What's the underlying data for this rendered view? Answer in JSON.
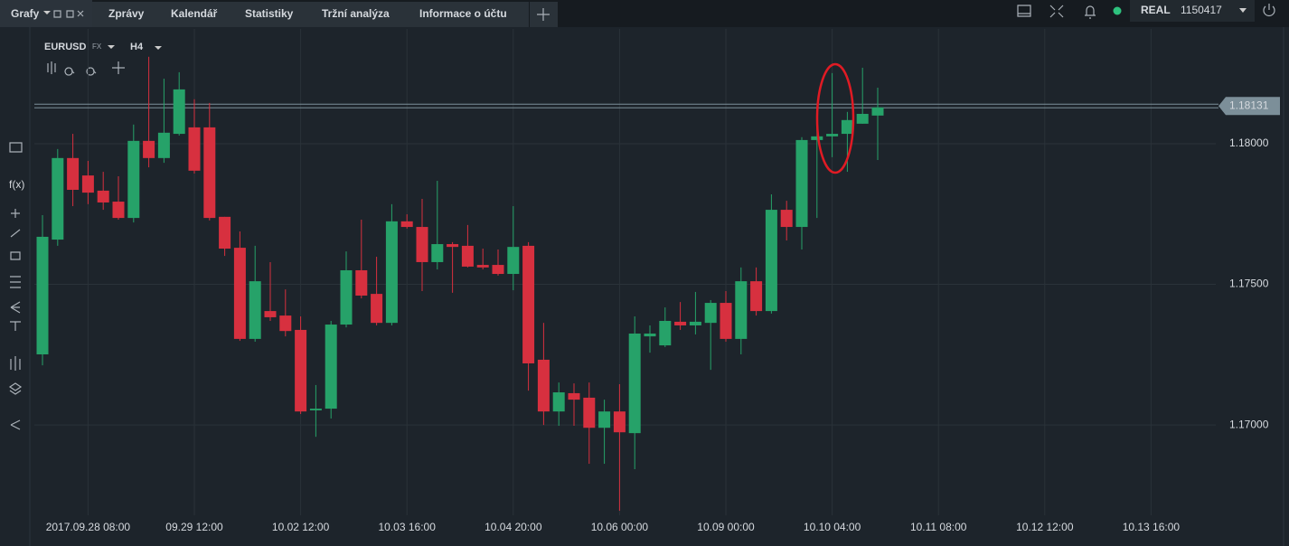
{
  "header": {
    "tabs": [
      "Grafy",
      "Zprávy",
      "Kalendář",
      "Statistiky",
      "Tržní analýza",
      "Informace o účtu"
    ],
    "account_type": "REAL",
    "account_id": "1150417"
  },
  "toolbar": [
    "f(x)"
  ],
  "chart_data": {
    "type": "candlestick",
    "symbol": "EURUSD",
    "market": "FX",
    "timeframe": "H4",
    "open": [
      1.17251,
      1.17659,
      1.17949,
      1.17887,
      1.17833,
      1.17794,
      1.17736,
      1.1801,
      1.17949,
      1.18035,
      1.18058,
      1.18058,
      1.1774,
      1.1763,
      1.17306,
      1.17405,
      1.17389,
      1.17338,
      1.17052,
      1.17058,
      1.17357,
      1.1755,
      1.17466,
      1.17363,
      1.17724,
      1.17704,
      1.17579,
      1.17643,
      1.17637,
      1.17569,
      1.17569,
      1.17537,
      1.17637,
      1.17232,
      1.17048,
      1.17113,
      1.17097,
      1.1699,
      1.17048,
      1.16971,
      1.17315,
      1.17283,
      1.17367,
      1.17354,
      1.17363,
      1.17434,
      1.17306,
      1.17511,
      1.17405,
      1.17765,
      1.17704,
      1.18013,
      1.18026,
      1.18035,
      1.18071,
      1.181
    ],
    "high": [
      1.17746,
      1.17981,
      1.18035,
      1.17939,
      1.179,
      1.17884,
      1.18068,
      1.18309,
      1.18231,
      1.18254,
      1.18158,
      1.18145,
      1.1774,
      1.17688,
      1.17637,
      1.17579,
      1.17482,
      1.17386,
      1.17142,
      1.1737,
      1.17617,
      1.1773,
      1.17598,
      1.17785,
      1.17749,
      1.17804,
      1.17868,
      1.1765,
      1.17711,
      1.17627,
      1.17624,
      1.17778,
      1.1765,
      1.17363,
      1.17151,
      1.17148,
      1.17151,
      1.1709,
      1.17145,
      1.17386,
      1.17354,
      1.17418,
      1.17437,
      1.17473,
      1.17444,
      1.17476,
      1.1756,
      1.1756,
      1.1782,
      1.17797,
      1.18023,
      1.18093,
      1.18251,
      1.18113,
      1.1827,
      1.18199
    ],
    "low": [
      1.17212,
      1.17637,
      1.17778,
      1.17785,
      1.17765,
      1.1773,
      1.1772,
      1.17916,
      1.17932,
      1.18029,
      1.17894,
      1.17727,
      1.17601,
      1.17299,
      1.17296,
      1.1737,
      1.17315,
      1.17039,
      1.16958,
      1.17023,
      1.17347,
      1.1745,
      1.17354,
      1.17354,
      1.17698,
      1.17476,
      1.17553,
      1.1747,
      1.1756,
      1.17553,
      1.17531,
      1.17479,
      1.17122,
      1.17,
      1.16997,
      1.16997,
      1.16862,
      1.16862,
      1.16695,
      1.16843,
      1.17257,
      1.17277,
      1.17338,
      1.17322,
      1.17196,
      1.17296,
      1.17251,
      1.17389,
      1.17396,
      1.17656,
      1.17624,
      1.17736,
      1.17952,
      1.179,
      1.18071,
      1.17942
    ],
    "close": [
      1.17669,
      1.17949,
      1.17836,
      1.17826,
      1.17791,
      1.17736,
      1.1801,
      1.17949,
      1.18039,
      1.18193,
      1.17904,
      1.17736,
      1.17627,
      1.17306,
      1.17511,
      1.17383,
      1.17334,
      1.17048,
      1.17058,
      1.17357,
      1.1755,
      1.1746,
      1.17363,
      1.17724,
      1.17704,
      1.17579,
      1.17643,
      1.17633,
      1.17563,
      1.1756,
      1.17537,
      1.17633,
      1.17219,
      1.17048,
      1.17116,
      1.1709,
      1.1699,
      1.17048,
      1.16974,
      1.17325,
      1.17325,
      1.1737,
      1.17354,
      1.17367,
      1.17434,
      1.17306,
      1.17511,
      1.17405,
      1.17765,
      1.17704,
      1.18013,
      1.18026,
      1.18035,
      1.18084,
      1.18106,
      1.18129
    ],
    "x_labels": [
      "2017.09.28 08:00",
      "09.29 12:00",
      "10.02 12:00",
      "10.03 16:00",
      "10.04 20:00",
      "10.06 00:00",
      "10.09 00:00",
      "10.10 04:00",
      "10.11 08:00",
      "10.12 12:00",
      "10.13 16:00"
    ],
    "ylim": [
      1.16679,
      1.18408
    ],
    "yticks": [
      {
        "value": 1.17,
        "label": "1.17000"
      },
      {
        "value": 1.175,
        "label": "1.17500"
      },
      {
        "value": 1.18,
        "label": "1.18000"
      }
    ],
    "current_price": 1.18131,
    "up_color": "#26a269",
    "down_color": "#d7303f",
    "grid": true
  }
}
